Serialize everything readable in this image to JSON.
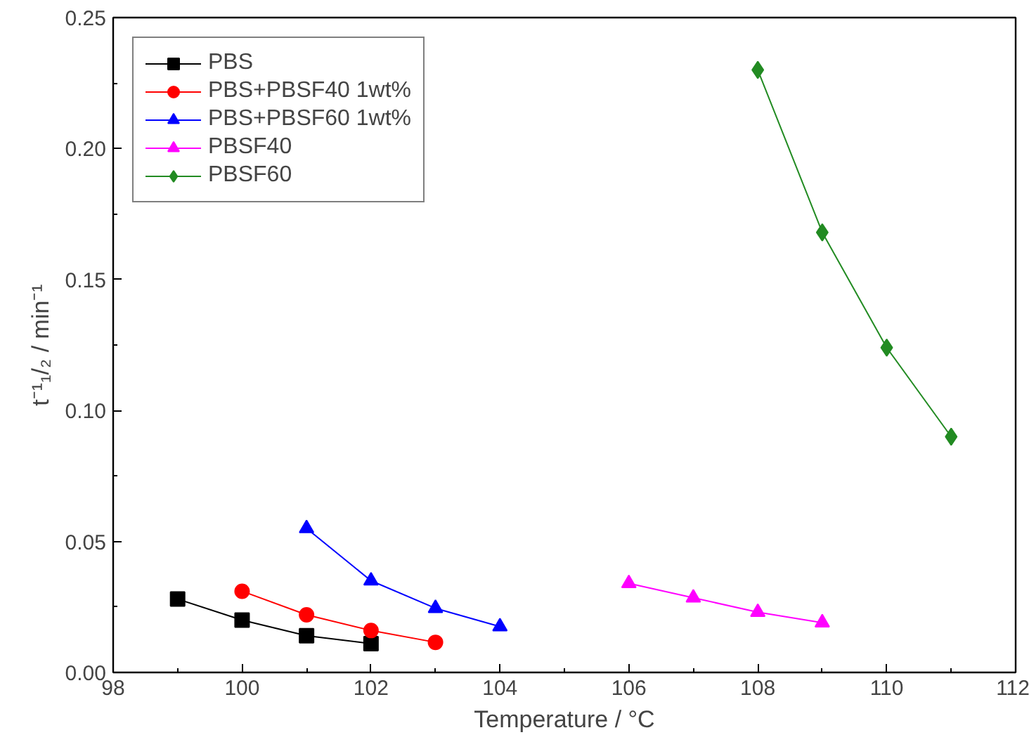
{
  "chart_data": {
    "type": "line",
    "xlabel": "Temperature / °C",
    "ylabel": "t⁻¹₁/₂ / min⁻¹",
    "xlim": [
      98,
      112
    ],
    "xticks": [
      98,
      100,
      102,
      104,
      106,
      108,
      110,
      112
    ],
    "ylim": [
      0,
      0.25
    ],
    "yticks": [
      {
        "value": 0,
        "label": "0.00"
      },
      {
        "value": 0.05,
        "label": "0.05"
      },
      {
        "value": 0.1,
        "label": "0.10"
      },
      {
        "value": 0.15,
        "label": "0.15"
      },
      {
        "value": 0.2,
        "label": "0.20"
      },
      {
        "value": 0.25,
        "label": "0.25"
      }
    ],
    "grid": false,
    "legend": "top left",
    "line_style": "solid",
    "series": [
      {
        "name": "PBS",
        "color": "#000000",
        "marker": "square",
        "x": [
          99,
          100,
          101,
          102
        ],
        "values": [
          0.028,
          0.02,
          0.014,
          0.011
        ]
      },
      {
        "name": "PBS+PBSF40 1wt%",
        "color": "#ff0000",
        "marker": "circle",
        "x": [
          100,
          101,
          102,
          103
        ],
        "values": [
          0.031,
          0.022,
          0.016,
          0.0115
        ]
      },
      {
        "name": "PBS+PBSF60 1wt%",
        "color": "#0000ff",
        "marker": "triangle",
        "x": [
          101,
          102,
          103,
          104
        ],
        "values": [
          0.055,
          0.035,
          0.0245,
          0.0175
        ]
      },
      {
        "name": "PBSF40",
        "color": "#ff00ff",
        "marker": "triangle",
        "x": [
          106,
          107,
          108,
          109
        ],
        "values": [
          0.034,
          0.0285,
          0.023,
          0.019
        ]
      },
      {
        "name": "PBSF60",
        "color": "#228b22",
        "marker": "diamond",
        "x": [
          108,
          109,
          110,
          111
        ],
        "values": [
          0.23,
          0.168,
          0.124,
          0.09
        ]
      }
    ]
  }
}
